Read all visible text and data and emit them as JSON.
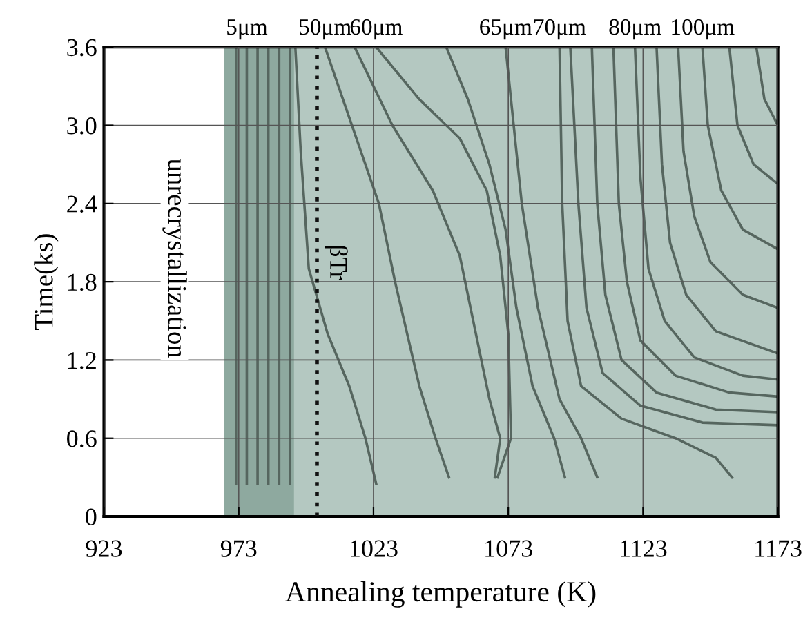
{
  "chart_data": {
    "type": "line",
    "xlabel": "Annealing temperature (K)",
    "ylabel": "Time(ks)",
    "xlim": [
      923,
      1173
    ],
    "ylim": [
      0,
      3.6
    ],
    "xticks": [
      923,
      973,
      1023,
      1073,
      1123,
      1173
    ],
    "yticks": [
      0,
      0.6,
      1.2,
      1.8,
      2.4,
      {
        "value": 3,
        "label": "3.0"
      },
      3.6
    ],
    "grid": true,
    "marker": "none",
    "line_style": "solid",
    "ref_lines": [
      {
        "axis": "x",
        "value": 1002,
        "label": "βTr",
        "color": "#111111",
        "line_style": "dotted"
      }
    ],
    "annotations": [
      "unrecrystallization",
      {
        "text": "5μm",
        "x": 976,
        "y": 3.6
      },
      {
        "text": "50μm",
        "x": 1005,
        "y": 3.6
      },
      {
        "text": "60μm",
        "x": 1024,
        "y": 3.6
      },
      {
        "text": "65μm",
        "x": 1072,
        "y": 3.6
      },
      {
        "text": "70μm",
        "x": 1092,
        "y": 3.6
      },
      {
        "text": "80μm",
        "x": 1120,
        "y": 3.6
      },
      {
        "text": "100μm",
        "x": 1145,
        "y": 3.6
      }
    ],
    "series": [
      {
        "type": "area",
        "color": "#b4c8c1",
        "x": [
          967.5,
          1173
        ],
        "values": [
          3.6,
          3.6
        ]
      },
      {
        "type": "area",
        "color": "#8ea99f",
        "x": [
          967.5,
          993.5
        ],
        "values": [
          3.6,
          3.6
        ]
      },
      {
        "color": "#56665f",
        "x": [
          972,
          972
        ],
        "values": [
          3.6,
          0.25
        ]
      },
      {
        "color": "#56665f",
        "x": [
          976,
          976
        ],
        "values": [
          3.6,
          0.25
        ]
      },
      {
        "color": "#56665f",
        "x": [
          980,
          980
        ],
        "values": [
          3.6,
          0.25
        ]
      },
      {
        "color": "#56665f",
        "x": [
          984,
          984
        ],
        "values": [
          3.6,
          0.25
        ]
      },
      {
        "color": "#56665f",
        "x": [
          988,
          988
        ],
        "values": [
          3.6,
          0.25
        ]
      },
      {
        "color": "#56665f",
        "x": [
          992,
          992
        ],
        "values": [
          3.6,
          0.25
        ]
      },
      {
        "color": "#56665f",
        "x": [
          994,
          996,
          999,
          1006,
          1014,
          1020,
          1024
        ],
        "values": [
          3.6,
          2.8,
          1.9,
          1.4,
          1.0,
          0.6,
          0.25
        ]
      },
      {
        "color": "#56665f",
        "x": [
          1005,
          1015,
          1025,
          1031,
          1040,
          1046,
          1051
        ],
        "values": [
          3.6,
          3.0,
          2.4,
          1.8,
          1.0,
          0.6,
          0.3
        ]
      },
      {
        "color": "#56665f",
        "x": [
          1016,
          1030,
          1045,
          1055,
          1060,
          1066,
          1070,
          1068
        ],
        "values": [
          3.6,
          3.0,
          2.5,
          2.0,
          1.5,
          0.9,
          0.6,
          0.3
        ]
      },
      {
        "color": "#56665f",
        "x": [
          1024,
          1040,
          1055,
          1065,
          1070,
          1073,
          1074,
          1069
        ],
        "values": [
          3.6,
          3.2,
          2.9,
          2.5,
          2.0,
          1.4,
          0.6,
          0.3
        ]
      },
      {
        "color": "#56665f",
        "x": [
          1050,
          1058,
          1066,
          1072,
          1076,
          1082,
          1090,
          1094
        ],
        "values": [
          3.6,
          3.2,
          2.7,
          2.2,
          1.6,
          1.0,
          0.6,
          0.3
        ]
      },
      {
        "color": "#56665f",
        "x": [
          1072,
          1078,
          1084,
          1092,
          1100,
          1106
        ],
        "values": [
          3.6,
          2.4,
          1.6,
          0.9,
          0.6,
          0.3
        ]
      },
      {
        "color": "#56665f",
        "x": [
          1092,
          1093,
          1095,
          1100,
          1115,
          1135,
          1150,
          1156
        ],
        "values": [
          3.6,
          2.4,
          1.5,
          1.0,
          0.75,
          0.6,
          0.45,
          0.3
        ]
      },
      {
        "color": "#56665f",
        "x": [
          1096,
          1099,
          1102,
          1108,
          1122,
          1145,
          1173
        ],
        "values": [
          3.6,
          2.4,
          1.6,
          1.1,
          0.85,
          0.72,
          0.7
        ]
      },
      {
        "color": "#56665f",
        "x": [
          1104,
          1106,
          1109,
          1115,
          1128,
          1150,
          1173
        ],
        "values": [
          3.6,
          2.4,
          1.7,
          1.2,
          0.95,
          0.82,
          0.8
        ]
      },
      {
        "color": "#56665f",
        "x": [
          1112,
          1114,
          1117,
          1122,
          1135,
          1155,
          1173
        ],
        "values": [
          3.6,
          2.4,
          1.8,
          1.35,
          1.08,
          0.95,
          0.92
        ]
      },
      {
        "color": "#56665f",
        "x": [
          1120,
          1122,
          1125,
          1131,
          1142,
          1160,
          1173
        ],
        "values": [
          3.6,
          2.6,
          1.9,
          1.5,
          1.22,
          1.08,
          1.05
        ]
      },
      {
        "color": "#56665f",
        "x": [
          1128,
          1130,
          1133,
          1139,
          1150,
          1173
        ],
        "values": [
          3.6,
          2.7,
          2.1,
          1.7,
          1.42,
          1.25
        ]
      },
      {
        "color": "#56665f",
        "x": [
          1136,
          1138,
          1142,
          1148,
          1160,
          1173
        ],
        "values": [
          3.6,
          2.8,
          2.3,
          1.95,
          1.7,
          1.6
        ]
      },
      {
        "color": "#56665f",
        "x": [
          1145,
          1147,
          1152,
          1160,
          1173
        ],
        "values": [
          3.6,
          3.0,
          2.5,
          2.2,
          2.05
        ]
      },
      {
        "color": "#56665f",
        "x": [
          1155,
          1158,
          1164,
          1173
        ],
        "values": [
          3.6,
          3.0,
          2.7,
          2.55
        ]
      },
      {
        "color": "#56665f",
        "x": [
          1165,
          1168,
          1173
        ],
        "values": [
          3.6,
          3.2,
          3.0
        ]
      }
    ]
  }
}
